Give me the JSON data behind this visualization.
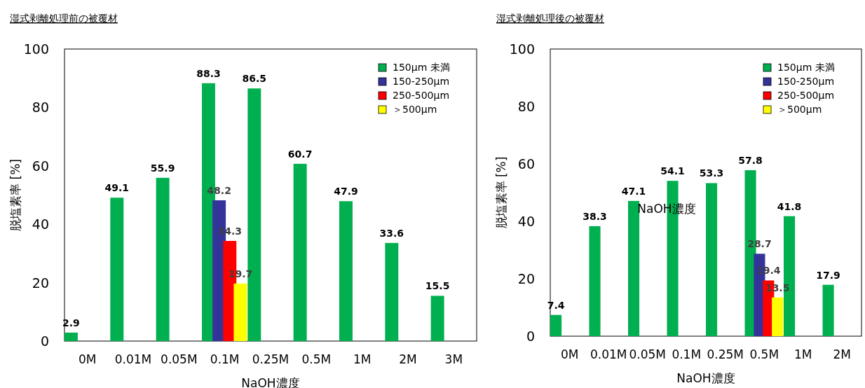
{
  "chart_data": [
    {
      "type": "bar",
      "title": "湿式剥離処理前の被覆材",
      "xlabel": "NaOH濃度",
      "ylabel": "脱塩素率 [%]",
      "categories": [
        "0M",
        "0.01M",
        "0.05M",
        "0.1M",
        "0.25M",
        "0.5M",
        "1M",
        "2M",
        "3M"
      ],
      "series": [
        {
          "name": "150μm 未満",
          "color": "#00b050",
          "values": [
            2.9,
            49.1,
            55.9,
            88.3,
            86.5,
            60.7,
            47.9,
            33.6,
            15.5
          ]
        },
        {
          "name": "150-250μm",
          "color": "#333399",
          "values": [
            null,
            null,
            null,
            48.2,
            null,
            null,
            null,
            null,
            null
          ]
        },
        {
          "name": "250-500μm",
          "color": "#ff0000",
          "values": [
            null,
            null,
            null,
            34.3,
            null,
            null,
            null,
            null,
            null
          ]
        },
        {
          "name": "＞500μm",
          "color": "#ffff00",
          "values": [
            null,
            null,
            null,
            19.7,
            null,
            null,
            null,
            null,
            null
          ]
        }
      ],
      "ylim": [
        0,
        100
      ],
      "yticks": [
        0,
        20,
        40,
        60,
        80,
        100
      ],
      "data_labels": true,
      "legend": "top right",
      "grid": false
    },
    {
      "type": "bar",
      "title": "湿式剥離処理後の被覆材",
      "xlabel": "NaOH濃度",
      "ylabel": "脱塩素率 [%]",
      "categories": [
        "0M",
        "0.01M",
        "0.05M",
        "0.1M",
        "0.25M",
        "0.5M",
        "1M",
        "2M"
      ],
      "series": [
        {
          "name": "150μm 未満",
          "color": "#00b050",
          "values": [
            7.4,
            38.3,
            47.1,
            54.1,
            53.3,
            57.8,
            41.8,
            17.9
          ]
        },
        {
          "name": "150-250μm",
          "color": "#333399",
          "values": [
            null,
            null,
            null,
            null,
            null,
            28.7,
            null,
            null
          ]
        },
        {
          "name": "250-500μm",
          "color": "#ff0000",
          "values": [
            null,
            null,
            null,
            null,
            null,
            19.4,
            null,
            null
          ]
        },
        {
          "name": "＞500μm",
          "color": "#ffff00",
          "values": [
            null,
            null,
            null,
            null,
            null,
            13.5,
            null,
            null
          ]
        }
      ],
      "ylim": [
        0,
        100
      ],
      "yticks": [
        0,
        20,
        40,
        60,
        80,
        100
      ],
      "data_labels": true,
      "legend": "top right",
      "grid": false,
      "annotations": [
        "NaOH濃度"
      ]
    }
  ]
}
